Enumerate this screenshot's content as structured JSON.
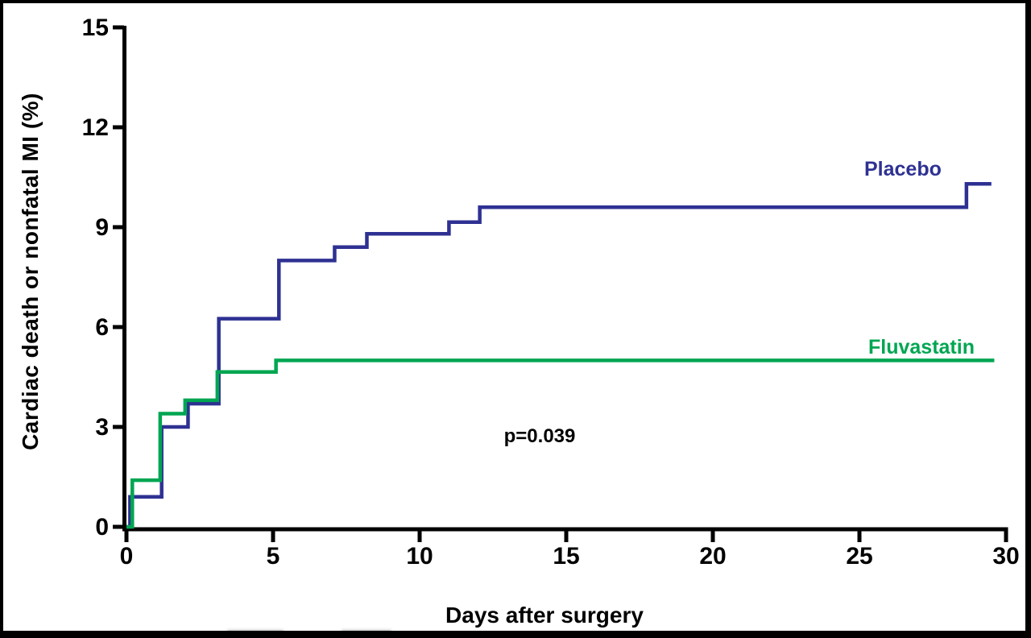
{
  "chart_data": {
    "type": "line",
    "subtype": "kaplan-meier-step",
    "title": "",
    "xlabel": "Days after surgery",
    "ylabel": "Cardiac death or nonfatal MI (%)",
    "xlim": [
      0,
      30
    ],
    "ylim": [
      0,
      15
    ],
    "xticks": [
      0,
      5,
      10,
      15,
      20,
      25,
      30
    ],
    "yticks": [
      0,
      3,
      6,
      9,
      12,
      15
    ],
    "grid": false,
    "legend_position": "inline-right-of-curves",
    "annotation": "p=0.039",
    "series": [
      {
        "name": "Placebo",
        "color": "#2e3192",
        "start": [
          0,
          0
        ],
        "end_day": 29.5,
        "steps": [
          [
            0.12,
            0.9
          ],
          [
            1.2,
            3.0
          ],
          [
            2.1,
            3.7
          ],
          [
            3.15,
            6.25
          ],
          [
            5.2,
            8.0
          ],
          [
            7.1,
            8.4
          ],
          [
            8.2,
            8.8
          ],
          [
            11.0,
            9.15
          ],
          [
            12.05,
            9.6
          ],
          [
            28.65,
            10.3
          ]
        ]
      },
      {
        "name": "Fluvastatin",
        "color": "#00a651",
        "start": [
          0,
          0
        ],
        "end_day": 29.6,
        "steps": [
          [
            0.2,
            1.4
          ],
          [
            1.15,
            3.4
          ],
          [
            2.0,
            3.8
          ],
          [
            3.1,
            4.65
          ],
          [
            5.1,
            5.0
          ]
        ]
      }
    ]
  },
  "labels": {
    "p_value": "p=0.039",
    "x_title": "Days after surgery",
    "y_title": "Cardiac death or nonfatal MI (%)"
  },
  "colors": {
    "axis": "#000000",
    "background": "#ffffff",
    "frame": "#000000",
    "placebo": "#2e3192",
    "fluvastatin": "#00a651"
  }
}
